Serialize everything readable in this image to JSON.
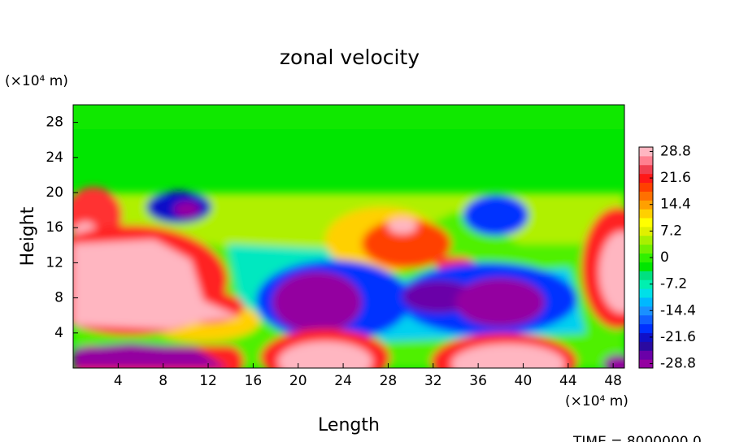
{
  "chart_data": {
    "type": "contour",
    "title": "zonal velocity",
    "x_label": "Length",
    "y_label": "Height",
    "x_unit": "(×10⁴ m)",
    "y_unit": "(×10⁴ m)",
    "footer": "TIME = 8000000.0",
    "xlim": [
      0,
      49
    ],
    "xticks": [
      4,
      8,
      12,
      16,
      20,
      24,
      28,
      32,
      36,
      40,
      44,
      48
    ],
    "ylim": [
      0,
      30
    ],
    "yticks": [
      4,
      8,
      12,
      16,
      20,
      24,
      28
    ],
    "clim": [
      -30,
      30
    ],
    "cticks": [
      28.8,
      21.6,
      14.4,
      7.2,
      0,
      -7.2,
      -14.4,
      -21.6,
      -28.8
    ],
    "colors": [
      "#9400a0",
      "#6a00a8",
      "#2a0aa0",
      "#1010c8",
      "#0030ff",
      "#1060ff",
      "#1a90ff",
      "#00b8ff",
      "#00e0e8",
      "#00f0b0",
      "#00e080",
      "#00e600",
      "#30f000",
      "#70f000",
      "#a8f000",
      "#e0f000",
      "#ffff00",
      "#ffd000",
      "#ffa000",
      "#ff7000",
      "#ff4000",
      "#ff1818",
      "#f04050",
      "#ff8090",
      "#ffb6c1"
    ]
  }
}
